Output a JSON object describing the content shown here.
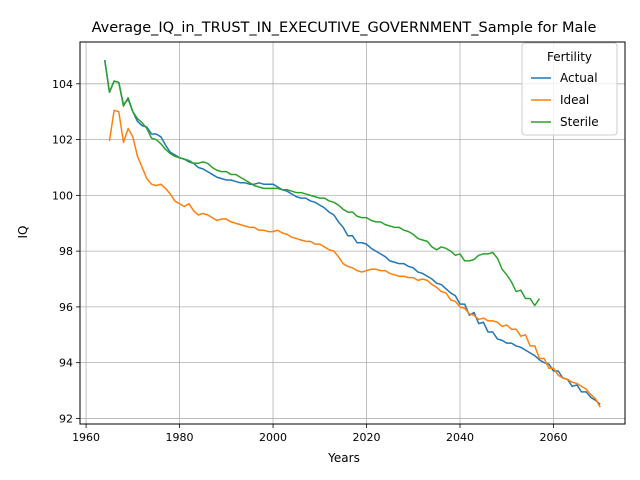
{
  "chart_data": {
    "type": "line",
    "title": "Average_IQ_in_TRUST_IN_EXECUTIVE_GOVERNMENT_Sample for Male",
    "xlabel": "Years",
    "ylabel": "IQ",
    "xlim": [
      1958.7,
      2075.3
    ],
    "ylim": [
      91.8,
      105.5
    ],
    "xticks": [
      1960,
      1980,
      2000,
      2020,
      2040,
      2060
    ],
    "yticks": [
      92,
      94,
      96,
      98,
      100,
      102,
      104
    ],
    "grid": true,
    "legend": {
      "title": "Fertility",
      "placement": "top-right"
    },
    "series": [
      {
        "name": "Actual",
        "color": "#1f77b4",
        "points": [
          [
            1964,
            104.85
          ],
          [
            1965,
            103.7
          ],
          [
            1966,
            104.1
          ],
          [
            1967,
            104.05
          ],
          [
            1968,
            103.25
          ],
          [
            1969,
            103.45
          ],
          [
            1970,
            103.0
          ],
          [
            1971,
            102.65
          ],
          [
            1972,
            102.5
          ],
          [
            1973,
            102.45
          ],
          [
            1974,
            102.2
          ],
          [
            1975,
            102.2
          ],
          [
            1976,
            102.1
          ],
          [
            1977,
            101.8
          ],
          [
            1978,
            101.55
          ],
          [
            1979,
            101.45
          ],
          [
            1980,
            101.35
          ],
          [
            1981,
            101.3
          ],
          [
            1982,
            101.2
          ],
          [
            1983,
            101.15
          ],
          [
            1984,
            101.0
          ],
          [
            1985,
            100.95
          ],
          [
            1986,
            100.85
          ],
          [
            1987,
            100.75
          ],
          [
            1988,
            100.65
          ],
          [
            1989,
            100.6
          ],
          [
            1990,
            100.55
          ],
          [
            1991,
            100.55
          ],
          [
            1992,
            100.5
          ],
          [
            1993,
            100.45
          ],
          [
            1994,
            100.45
          ],
          [
            1995,
            100.4
          ],
          [
            1996,
            100.4
          ],
          [
            1997,
            100.45
          ],
          [
            1998,
            100.4
          ],
          [
            1999,
            100.4
          ],
          [
            2000,
            100.4
          ],
          [
            2001,
            100.3
          ],
          [
            2002,
            100.2
          ],
          [
            2003,
            100.15
          ],
          [
            2004,
            100.05
          ],
          [
            2005,
            99.95
          ],
          [
            2006,
            99.9
          ],
          [
            2007,
            99.9
          ],
          [
            2008,
            99.8
          ],
          [
            2009,
            99.75
          ],
          [
            2010,
            99.65
          ],
          [
            2011,
            99.55
          ],
          [
            2012,
            99.4
          ],
          [
            2013,
            99.3
          ],
          [
            2014,
            99.05
          ],
          [
            2015,
            98.85
          ],
          [
            2016,
            98.55
          ],
          [
            2017,
            98.55
          ],
          [
            2018,
            98.3
          ],
          [
            2019,
            98.3
          ],
          [
            2020,
            98.25
          ],
          [
            2021,
            98.1
          ],
          [
            2022,
            98.0
          ],
          [
            2023,
            97.9
          ],
          [
            2024,
            97.8
          ],
          [
            2025,
            97.65
          ],
          [
            2026,
            97.6
          ],
          [
            2027,
            97.55
          ],
          [
            2028,
            97.55
          ],
          [
            2029,
            97.45
          ],
          [
            2030,
            97.4
          ],
          [
            2031,
            97.25
          ],
          [
            2032,
            97.2
          ],
          [
            2033,
            97.1
          ],
          [
            2034,
            97.0
          ],
          [
            2035,
            96.85
          ],
          [
            2036,
            96.8
          ],
          [
            2037,
            96.65
          ],
          [
            2038,
            96.5
          ],
          [
            2039,
            96.4
          ],
          [
            2040,
            96.1
          ],
          [
            2041,
            96.1
          ],
          [
            2042,
            95.7
          ],
          [
            2043,
            95.8
          ],
          [
            2044,
            95.4
          ],
          [
            2045,
            95.45
          ],
          [
            2046,
            95.1
          ],
          [
            2047,
            95.1
          ],
          [
            2048,
            94.85
          ],
          [
            2049,
            94.8
          ],
          [
            2050,
            94.7
          ],
          [
            2051,
            94.7
          ],
          [
            2052,
            94.6
          ],
          [
            2053,
            94.55
          ],
          [
            2054,
            94.45
          ],
          [
            2055,
            94.35
          ],
          [
            2056,
            94.25
          ],
          [
            2057,
            94.1
          ],
          [
            2058,
            94.0
          ],
          [
            2059,
            93.95
          ],
          [
            2060,
            93.7
          ],
          [
            2061,
            93.7
          ],
          [
            2062,
            93.45
          ],
          [
            2063,
            93.4
          ],
          [
            2064,
            93.15
          ],
          [
            2065,
            93.2
          ],
          [
            2066,
            92.95
          ],
          [
            2067,
            92.95
          ],
          [
            2068,
            92.75
          ],
          [
            2069,
            92.65
          ],
          [
            2070,
            92.5
          ]
        ]
      },
      {
        "name": "Ideal",
        "color": "#ff7f0e",
        "points": [
          [
            1965,
            101.95
          ],
          [
            1966,
            103.05
          ],
          [
            1967,
            103.0
          ],
          [
            1968,
            101.9
          ],
          [
            1969,
            102.4
          ],
          [
            1970,
            102.1
          ],
          [
            1971,
            101.4
          ],
          [
            1972,
            101.0
          ],
          [
            1973,
            100.6
          ],
          [
            1974,
            100.4
          ],
          [
            1975,
            100.35
          ],
          [
            1976,
            100.4
          ],
          [
            1977,
            100.25
          ],
          [
            1978,
            100.05
          ],
          [
            1979,
            99.8
          ],
          [
            1980,
            99.7
          ],
          [
            1981,
            99.6
          ],
          [
            1982,
            99.7
          ],
          [
            1983,
            99.45
          ],
          [
            1984,
            99.3
          ],
          [
            1985,
            99.35
          ],
          [
            1986,
            99.3
          ],
          [
            1987,
            99.2
          ],
          [
            1988,
            99.1
          ],
          [
            1989,
            99.15
          ],
          [
            1990,
            99.15
          ],
          [
            1991,
            99.05
          ],
          [
            1992,
            99.0
          ],
          [
            1993,
            98.95
          ],
          [
            1994,
            98.9
          ],
          [
            1995,
            98.85
          ],
          [
            1996,
            98.85
          ],
          [
            1997,
            98.75
          ],
          [
            1998,
            98.75
          ],
          [
            1999,
            98.7
          ],
          [
            2000,
            98.7
          ],
          [
            2001,
            98.75
          ],
          [
            2002,
            98.65
          ],
          [
            2003,
            98.6
          ],
          [
            2004,
            98.5
          ],
          [
            2005,
            98.45
          ],
          [
            2006,
            98.4
          ],
          [
            2007,
            98.35
          ],
          [
            2008,
            98.35
          ],
          [
            2009,
            98.25
          ],
          [
            2010,
            98.25
          ],
          [
            2011,
            98.15
          ],
          [
            2012,
            98.05
          ],
          [
            2013,
            98.0
          ],
          [
            2014,
            97.8
          ],
          [
            2015,
            97.55
          ],
          [
            2016,
            97.45
          ],
          [
            2017,
            97.4
          ],
          [
            2018,
            97.3
          ],
          [
            2019,
            97.25
          ],
          [
            2020,
            97.3
          ],
          [
            2021,
            97.35
          ],
          [
            2022,
            97.35
          ],
          [
            2023,
            97.3
          ],
          [
            2024,
            97.3
          ],
          [
            2025,
            97.2
          ],
          [
            2026,
            97.15
          ],
          [
            2027,
            97.1
          ],
          [
            2028,
            97.1
          ],
          [
            2029,
            97.05
          ],
          [
            2030,
            97.05
          ],
          [
            2031,
            96.95
          ],
          [
            2032,
            97.0
          ],
          [
            2033,
            96.95
          ],
          [
            2034,
            96.8
          ],
          [
            2035,
            96.7
          ],
          [
            2036,
            96.55
          ],
          [
            2037,
            96.5
          ],
          [
            2038,
            96.25
          ],
          [
            2039,
            96.2
          ],
          [
            2040,
            96.0
          ],
          [
            2041,
            95.95
          ],
          [
            2042,
            95.75
          ],
          [
            2043,
            95.7
          ],
          [
            2044,
            95.55
          ],
          [
            2045,
            95.6
          ],
          [
            2046,
            95.5
          ],
          [
            2047,
            95.5
          ],
          [
            2048,
            95.45
          ],
          [
            2049,
            95.3
          ],
          [
            2050,
            95.35
          ],
          [
            2051,
            95.2
          ],
          [
            2052,
            95.2
          ],
          [
            2053,
            94.95
          ],
          [
            2054,
            95.0
          ],
          [
            2055,
            94.6
          ],
          [
            2056,
            94.6
          ],
          [
            2057,
            94.15
          ],
          [
            2058,
            94.15
          ],
          [
            2059,
            93.8
          ],
          [
            2060,
            93.8
          ],
          [
            2061,
            93.55
          ],
          [
            2062,
            93.45
          ],
          [
            2063,
            93.4
          ],
          [
            2064,
            93.3
          ],
          [
            2065,
            93.25
          ],
          [
            2066,
            93.15
          ],
          [
            2067,
            93.05
          ],
          [
            2068,
            92.85
          ],
          [
            2069,
            92.7
          ],
          [
            2070,
            92.4
          ]
        ]
      },
      {
        "name": "Sterile",
        "color": "#2ca02c",
        "points": [
          [
            1964,
            104.85
          ],
          [
            1965,
            103.7
          ],
          [
            1966,
            104.1
          ],
          [
            1967,
            104.05
          ],
          [
            1968,
            103.2
          ],
          [
            1969,
            103.5
          ],
          [
            1970,
            103.0
          ],
          [
            1971,
            102.75
          ],
          [
            1972,
            102.6
          ],
          [
            1973,
            102.4
          ],
          [
            1974,
            102.05
          ],
          [
            1975,
            102.0
          ],
          [
            1976,
            101.85
          ],
          [
            1977,
            101.65
          ],
          [
            1978,
            101.5
          ],
          [
            1979,
            101.4
          ],
          [
            1980,
            101.35
          ],
          [
            1981,
            101.3
          ],
          [
            1982,
            101.25
          ],
          [
            1983,
            101.15
          ],
          [
            1984,
            101.15
          ],
          [
            1985,
            101.2
          ],
          [
            1986,
            101.15
          ],
          [
            1987,
            101.0
          ],
          [
            1988,
            100.9
          ],
          [
            1989,
            100.85
          ],
          [
            1990,
            100.85
          ],
          [
            1991,
            100.75
          ],
          [
            1992,
            100.75
          ],
          [
            1993,
            100.65
          ],
          [
            1994,
            100.55
          ],
          [
            1995,
            100.45
          ],
          [
            1996,
            100.35
          ],
          [
            1997,
            100.3
          ],
          [
            1998,
            100.25
          ],
          [
            1999,
            100.25
          ],
          [
            2000,
            100.25
          ],
          [
            2001,
            100.25
          ],
          [
            2002,
            100.2
          ],
          [
            2003,
            100.2
          ],
          [
            2004,
            100.15
          ],
          [
            2005,
            100.1
          ],
          [
            2006,
            100.1
          ],
          [
            2007,
            100.05
          ],
          [
            2008,
            100.0
          ],
          [
            2009,
            99.95
          ],
          [
            2010,
            99.9
          ],
          [
            2011,
            99.9
          ],
          [
            2012,
            99.8
          ],
          [
            2013,
            99.75
          ],
          [
            2014,
            99.65
          ],
          [
            2015,
            99.5
          ],
          [
            2016,
            99.4
          ],
          [
            2017,
            99.4
          ],
          [
            2018,
            99.25
          ],
          [
            2019,
            99.2
          ],
          [
            2020,
            99.2
          ],
          [
            2021,
            99.1
          ],
          [
            2022,
            99.05
          ],
          [
            2023,
            99.05
          ],
          [
            2024,
            98.95
          ],
          [
            2025,
            98.9
          ],
          [
            2026,
            98.85
          ],
          [
            2027,
            98.85
          ],
          [
            2028,
            98.75
          ],
          [
            2029,
            98.7
          ],
          [
            2030,
            98.6
          ],
          [
            2031,
            98.45
          ],
          [
            2032,
            98.4
          ],
          [
            2033,
            98.35
          ],
          [
            2034,
            98.15
          ],
          [
            2035,
            98.05
          ],
          [
            2036,
            98.15
          ],
          [
            2037,
            98.1
          ],
          [
            2038,
            98.0
          ],
          [
            2039,
            97.85
          ],
          [
            2040,
            97.9
          ],
          [
            2041,
            97.65
          ],
          [
            2042,
            97.65
          ],
          [
            2043,
            97.7
          ],
          [
            2044,
            97.85
          ],
          [
            2045,
            97.9
          ],
          [
            2046,
            97.9
          ],
          [
            2047,
            97.95
          ],
          [
            2048,
            97.75
          ],
          [
            2049,
            97.35
          ],
          [
            2050,
            97.15
          ],
          [
            2051,
            96.9
          ],
          [
            2052,
            96.55
          ],
          [
            2053,
            96.6
          ],
          [
            2054,
            96.3
          ],
          [
            2055,
            96.3
          ],
          [
            2056,
            96.05
          ],
          [
            2057,
            96.3
          ]
        ]
      }
    ]
  }
}
